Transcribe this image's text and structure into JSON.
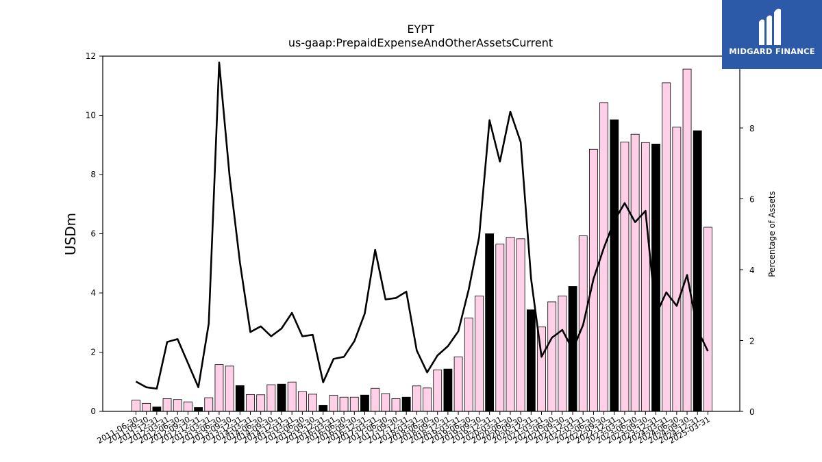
{
  "chart_data": {
    "type": "bar+line",
    "title": "EYPT",
    "subtitle": "us-gaap:PrepaidExpenseAndOtherAssetsCurrent",
    "ylabel_left": "USDm",
    "ylabel_right": "Percentage of Assets",
    "ylim_left": [
      0,
      12
    ],
    "ylim_right": [
      0,
      10
    ],
    "yticks_left": [
      0,
      2,
      4,
      6,
      8,
      10,
      12
    ],
    "yticks_right": [
      0,
      2,
      4,
      6,
      8
    ],
    "grid": false,
    "x": [
      "2011-06-30",
      "2011-09-30",
      "2011-12-31",
      "2012-03-31",
      "2012-06-30",
      "2012-09-30",
      "2012-12-31",
      "2013-03-31",
      "2013-06-30",
      "2013-09-30",
      "2013-12-31",
      "2014-03-31",
      "2014-06-30",
      "2014-09-30",
      "2014-12-31",
      "2015-03-31",
      "2015-06-30",
      "2015-09-30",
      "2015-12-31",
      "2016-03-31",
      "2016-06-30",
      "2016-09-30",
      "2016-12-31",
      "2017-03-31",
      "2017-06-30",
      "2017-09-30",
      "2017-12-31",
      "2018-03-31",
      "2018-06-30",
      "2018-09-30",
      "2018-12-31",
      "2019-03-31",
      "2019-06-30",
      "2019-09-30",
      "2019-12-31",
      "2020-03-31",
      "2020-06-30",
      "2020-09-30",
      "2020-12-31",
      "2021-03-31",
      "2021-06-30",
      "2021-09-30",
      "2021-12-31",
      "2022-03-31",
      "2022-06-30",
      "2022-09-30",
      "2022-12-31",
      "2023-03-31",
      "2023-06-30",
      "2023-09-30",
      "2023-12-31",
      "2024-03-31",
      "2024-06-30",
      "2024-09-30",
      "2024-12-31",
      "2025-03-31"
    ],
    "bars": {
      "name": "PrepaidExpenseAndOtherAssetsCurrent",
      "values": [
        0.38,
        0.27,
        0.15,
        0.43,
        0.4,
        0.32,
        0.13,
        0.46,
        1.58,
        1.53,
        0.87,
        0.57,
        0.56,
        0.9,
        0.92,
        0.99,
        0.67,
        0.58,
        0.2,
        0.54,
        0.48,
        0.48,
        0.55,
        0.78,
        0.6,
        0.43,
        0.48,
        0.86,
        0.79,
        1.4,
        1.43,
        1.84,
        3.15,
        3.9,
        6.0,
        5.65,
        5.88,
        5.83,
        3.43,
        2.85,
        3.7,
        3.9,
        4.22,
        5.93,
        8.85,
        10.43,
        9.85,
        9.1,
        9.36,
        9.08,
        9.03,
        11.1,
        9.6,
        11.56,
        9.48,
        6.22
      ],
      "highlight": [
        false,
        false,
        true,
        false,
        false,
        false,
        true,
        false,
        false,
        false,
        true,
        false,
        false,
        false,
        true,
        false,
        false,
        false,
        true,
        false,
        false,
        false,
        true,
        false,
        false,
        false,
        true,
        false,
        false,
        false,
        true,
        false,
        false,
        false,
        true,
        false,
        false,
        false,
        true,
        false,
        false,
        false,
        true,
        false,
        false,
        false,
        true,
        false,
        false,
        false,
        true,
        false,
        false,
        false,
        true,
        false
      ],
      "color": "#ffd0e8",
      "highlight_color": "#000000"
    },
    "line": {
      "name": "Percentage of Assets",
      "values": [
        0.84,
        0.68,
        0.64,
        1.96,
        2.04,
        1.36,
        0.68,
        2.48,
        9.85,
        6.65,
        4.2,
        2.24,
        2.4,
        2.12,
        2.34,
        2.78,
        2.12,
        2.16,
        0.82,
        1.48,
        1.54,
        1.98,
        2.76,
        4.56,
        3.16,
        3.2,
        3.38,
        1.72,
        1.1,
        1.58,
        1.84,
        2.26,
        3.44,
        4.92,
        8.22,
        7.05,
        8.46,
        7.6,
        3.74,
        1.54,
        2.08,
        2.3,
        1.74,
        2.44,
        3.74,
        4.62,
        5.38,
        5.88,
        5.34,
        5.66,
        2.72,
        3.36,
        2.98,
        3.85,
        2.3,
        1.7
      ],
      "color": "#000000"
    }
  },
  "branding": {
    "logo_text": "MIDGARD FINANCE",
    "logo_color": "#2c5aa8"
  }
}
